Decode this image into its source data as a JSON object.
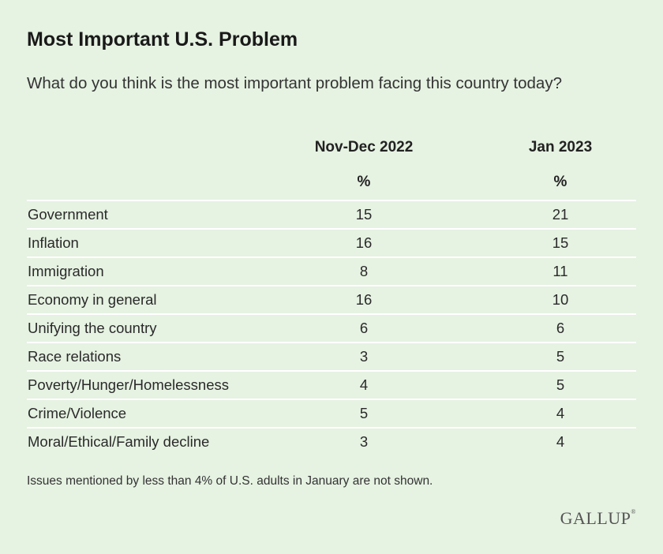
{
  "chart_data": {
    "type": "table",
    "title": "Most Important U.S. Problem",
    "subtitle": "What do you think is the most important problem facing this country today?",
    "columns": [
      {
        "header": "Nov-Dec 2022",
        "unit": "%"
      },
      {
        "header": "Jan 2023",
        "unit": "%"
      }
    ],
    "rows": [
      {
        "label": "Government",
        "values": [
          "15",
          "21"
        ]
      },
      {
        "label": "Inflation",
        "values": [
          "16",
          "15"
        ]
      },
      {
        "label": "Immigration",
        "values": [
          "8",
          "11"
        ]
      },
      {
        "label": "Economy in general",
        "values": [
          "16",
          "10"
        ]
      },
      {
        "label": "Unifying the country",
        "values": [
          "6",
          "6"
        ]
      },
      {
        "label": "Race relations",
        "values": [
          "3",
          "5"
        ]
      },
      {
        "label": "Poverty/Hunger/Homelessness",
        "values": [
          "4",
          "5"
        ]
      },
      {
        "label": "Crime/Violence",
        "values": [
          "5",
          "4"
        ]
      },
      {
        "label": "Moral/Ethical/Family decline",
        "values": [
          "3",
          "4"
        ]
      }
    ],
    "footnote": "Issues mentioned by less than 4% of U.S. adults in January are not shown.",
    "source": "GALLUP"
  },
  "colors": {
    "background": "#e6f2e2",
    "divider": "#ffffff",
    "text": "#222222"
  }
}
